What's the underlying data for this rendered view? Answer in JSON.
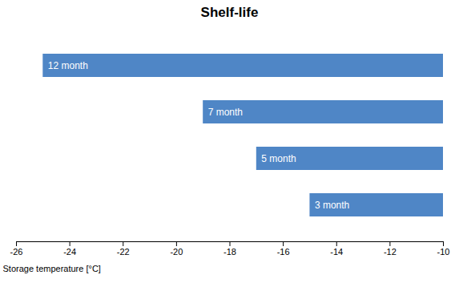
{
  "chart_data": {
    "type": "bar",
    "orientation": "horizontal",
    "title": "Shelf-life",
    "xlabel": "Storage temperature [°C]",
    "categories": [
      "12 month",
      "7 month",
      "5 month",
      "3 month"
    ],
    "values": [
      [
        -25,
        -10
      ],
      [
        -19,
        -10
      ],
      [
        -17,
        -10
      ],
      [
        -15,
        -10
      ]
    ],
    "color": "#4F86C6",
    "xlim": [
      -26,
      -10
    ],
    "xticks": [
      -26,
      -24,
      -22,
      -20,
      -18,
      -16,
      -14,
      -12,
      -10
    ],
    "grid": false,
    "tick_labels": "x"
  }
}
